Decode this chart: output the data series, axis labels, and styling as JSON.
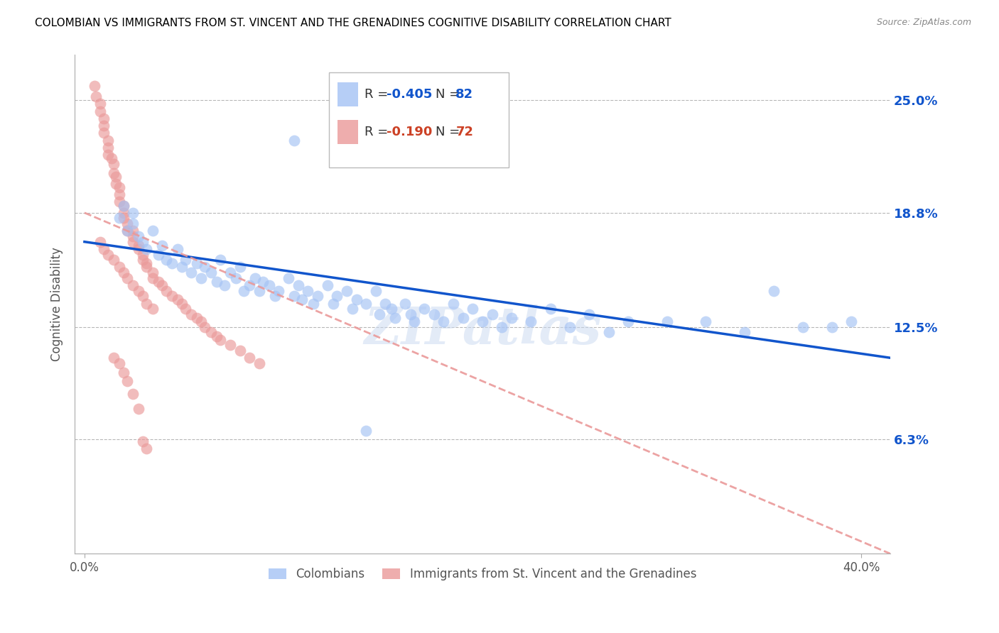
{
  "title": "COLOMBIAN VS IMMIGRANTS FROM ST. VINCENT AND THE GRENADINES COGNITIVE DISABILITY CORRELATION CHART",
  "source": "Source: ZipAtlas.com",
  "ylabel": "Cognitive Disability",
  "ytick_labels": [
    "25.0%",
    "18.8%",
    "12.5%",
    "6.3%"
  ],
  "ytick_values": [
    0.25,
    0.188,
    0.125,
    0.063
  ],
  "xlim": [
    -0.005,
    0.415
  ],
  "ylim": [
    0.0,
    0.275
  ],
  "legend_blue_R": "-0.405",
  "legend_blue_N": "82",
  "legend_pink_R": "-0.190",
  "legend_pink_N": "72",
  "blue_color": "#a4c2f4",
  "pink_color": "#ea9999",
  "trend_blue_color": "#1155cc",
  "trend_pink_color": "#cc4125",
  "grid_color": "#b7b7b7",
  "right_label_color": "#1155cc",
  "watermark": "ZIPatlas",
  "blue_scatter_x": [
    0.018,
    0.02,
    0.022,
    0.025,
    0.025,
    0.028,
    0.03,
    0.032,
    0.035,
    0.038,
    0.04,
    0.042,
    0.045,
    0.048,
    0.05,
    0.052,
    0.055,
    0.058,
    0.06,
    0.062,
    0.065,
    0.068,
    0.07,
    0.072,
    0.075,
    0.078,
    0.08,
    0.082,
    0.085,
    0.088,
    0.09,
    0.092,
    0.095,
    0.098,
    0.1,
    0.105,
    0.108,
    0.11,
    0.112,
    0.115,
    0.118,
    0.12,
    0.125,
    0.128,
    0.13,
    0.135,
    0.138,
    0.14,
    0.145,
    0.15,
    0.152,
    0.155,
    0.158,
    0.16,
    0.165,
    0.168,
    0.17,
    0.175,
    0.18,
    0.185,
    0.19,
    0.195,
    0.2,
    0.205,
    0.21,
    0.215,
    0.22,
    0.23,
    0.24,
    0.25,
    0.26,
    0.27,
    0.28,
    0.3,
    0.32,
    0.34,
    0.355,
    0.37,
    0.385,
    0.395,
    0.108,
    0.145
  ],
  "blue_scatter_y": [
    0.185,
    0.192,
    0.178,
    0.182,
    0.188,
    0.175,
    0.172,
    0.168,
    0.178,
    0.165,
    0.17,
    0.162,
    0.16,
    0.168,
    0.158,
    0.162,
    0.155,
    0.16,
    0.152,
    0.158,
    0.155,
    0.15,
    0.162,
    0.148,
    0.155,
    0.152,
    0.158,
    0.145,
    0.148,
    0.152,
    0.145,
    0.15,
    0.148,
    0.142,
    0.145,
    0.152,
    0.142,
    0.148,
    0.14,
    0.145,
    0.138,
    0.142,
    0.148,
    0.138,
    0.142,
    0.145,
    0.135,
    0.14,
    0.138,
    0.145,
    0.132,
    0.138,
    0.135,
    0.13,
    0.138,
    0.132,
    0.128,
    0.135,
    0.132,
    0.128,
    0.138,
    0.13,
    0.135,
    0.128,
    0.132,
    0.125,
    0.13,
    0.128,
    0.135,
    0.125,
    0.132,
    0.122,
    0.128,
    0.128,
    0.128,
    0.122,
    0.145,
    0.125,
    0.125,
    0.128,
    0.228,
    0.068
  ],
  "pink_scatter_x": [
    0.005,
    0.006,
    0.008,
    0.008,
    0.01,
    0.01,
    0.01,
    0.012,
    0.012,
    0.012,
    0.014,
    0.015,
    0.015,
    0.016,
    0.016,
    0.018,
    0.018,
    0.018,
    0.02,
    0.02,
    0.02,
    0.022,
    0.022,
    0.025,
    0.025,
    0.025,
    0.028,
    0.028,
    0.03,
    0.03,
    0.032,
    0.032,
    0.035,
    0.035,
    0.038,
    0.04,
    0.042,
    0.045,
    0.048,
    0.05,
    0.052,
    0.055,
    0.058,
    0.06,
    0.062,
    0.065,
    0.068,
    0.07,
    0.075,
    0.08,
    0.085,
    0.09,
    0.008,
    0.01,
    0.012,
    0.015,
    0.018,
    0.02,
    0.022,
    0.025,
    0.028,
    0.03,
    0.032,
    0.035,
    0.015,
    0.018,
    0.02,
    0.022,
    0.025,
    0.028,
    0.03,
    0.032
  ],
  "pink_scatter_y": [
    0.258,
    0.252,
    0.248,
    0.244,
    0.24,
    0.236,
    0.232,
    0.228,
    0.224,
    0.22,
    0.218,
    0.215,
    0.21,
    0.208,
    0.204,
    0.202,
    0.198,
    0.194,
    0.192,
    0.188,
    0.185,
    0.182,
    0.178,
    0.178,
    0.175,
    0.172,
    0.17,
    0.168,
    0.165,
    0.162,
    0.16,
    0.158,
    0.155,
    0.152,
    0.15,
    0.148,
    0.145,
    0.142,
    0.14,
    0.138,
    0.135,
    0.132,
    0.13,
    0.128,
    0.125,
    0.122,
    0.12,
    0.118,
    0.115,
    0.112,
    0.108,
    0.105,
    0.172,
    0.168,
    0.165,
    0.162,
    0.158,
    0.155,
    0.152,
    0.148,
    0.145,
    0.142,
    0.138,
    0.135,
    0.108,
    0.105,
    0.1,
    0.095,
    0.088,
    0.08,
    0.062,
    0.058
  ],
  "blue_trend_x0": 0.0,
  "blue_trend_y0": 0.172,
  "blue_trend_x1": 0.415,
  "blue_trend_y1": 0.108,
  "pink_trend_x0": 0.0,
  "pink_trend_y0": 0.188,
  "pink_trend_x1": 0.415,
  "pink_trend_y1": 0.0
}
